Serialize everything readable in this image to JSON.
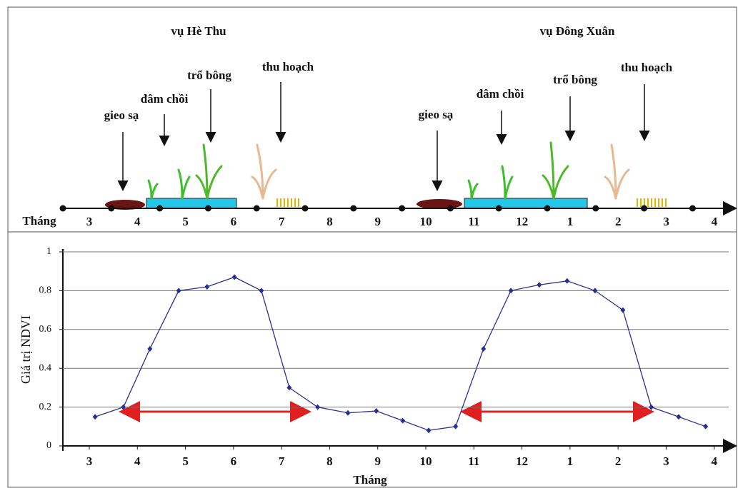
{
  "diagram": {
    "seasons": [
      {
        "title": "vụ Hè Thu",
        "stages": [
          "gieo sạ",
          "đâm chồi",
          "trổ bông",
          "thu hoạch"
        ]
      },
      {
        "title": "vụ Đông Xuân",
        "stages": [
          "gieo sạ",
          "đâm chồi",
          "trổ bông",
          "thu hoạch"
        ]
      }
    ],
    "timeline_label": "Tháng",
    "months": [
      "3",
      "4",
      "5",
      "6",
      "7",
      "8",
      "9",
      "10",
      "11",
      "12",
      "1",
      "2",
      "3",
      "4"
    ]
  },
  "chart_data": {
    "type": "line",
    "y_label": "Giá trị NDVI",
    "x_label": "Tháng",
    "x": [
      0.12,
      0.71,
      1.26,
      1.86,
      2.45,
      3.02,
      3.58,
      4.16,
      4.75,
      5.38,
      5.97,
      6.52,
      7.06,
      7.62,
      8.2,
      8.77,
      9.36,
      9.94,
      10.52,
      11.1,
      11.69,
      12.26,
      12.82
    ],
    "values": [
      0.15,
      0.2,
      0.5,
      0.8,
      0.82,
      0.87,
      0.8,
      0.3,
      0.2,
      0.17,
      0.18,
      0.13,
      0.08,
      0.1,
      0.5,
      0.8,
      0.83,
      0.85,
      0.8,
      0.7,
      0.2,
      0.15,
      0.1
    ],
    "color": "#2b2f8f",
    "xlim": [
      -0.55,
      13.45
    ],
    "xticks": [
      {
        "value": 0,
        "label": "3"
      },
      {
        "value": 1,
        "label": "4"
      },
      {
        "value": 2,
        "label": "5"
      },
      {
        "value": 3,
        "label": "6"
      },
      {
        "value": 4,
        "label": "7"
      },
      {
        "value": 5,
        "label": "8"
      },
      {
        "value": 6,
        "label": "9"
      },
      {
        "value": 7,
        "label": "10"
      },
      {
        "value": 8,
        "label": "11"
      },
      {
        "value": 9,
        "label": "12"
      },
      {
        "value": 10,
        "label": "1"
      },
      {
        "value": 11,
        "label": "2"
      },
      {
        "value": 12,
        "label": "3"
      },
      {
        "value": 13,
        "label": "4"
      }
    ],
    "ylim": [
      0,
      1
    ],
    "yticks": [
      0,
      0.2,
      0.4,
      0.6,
      0.8,
      1
    ],
    "grid": true
  }
}
